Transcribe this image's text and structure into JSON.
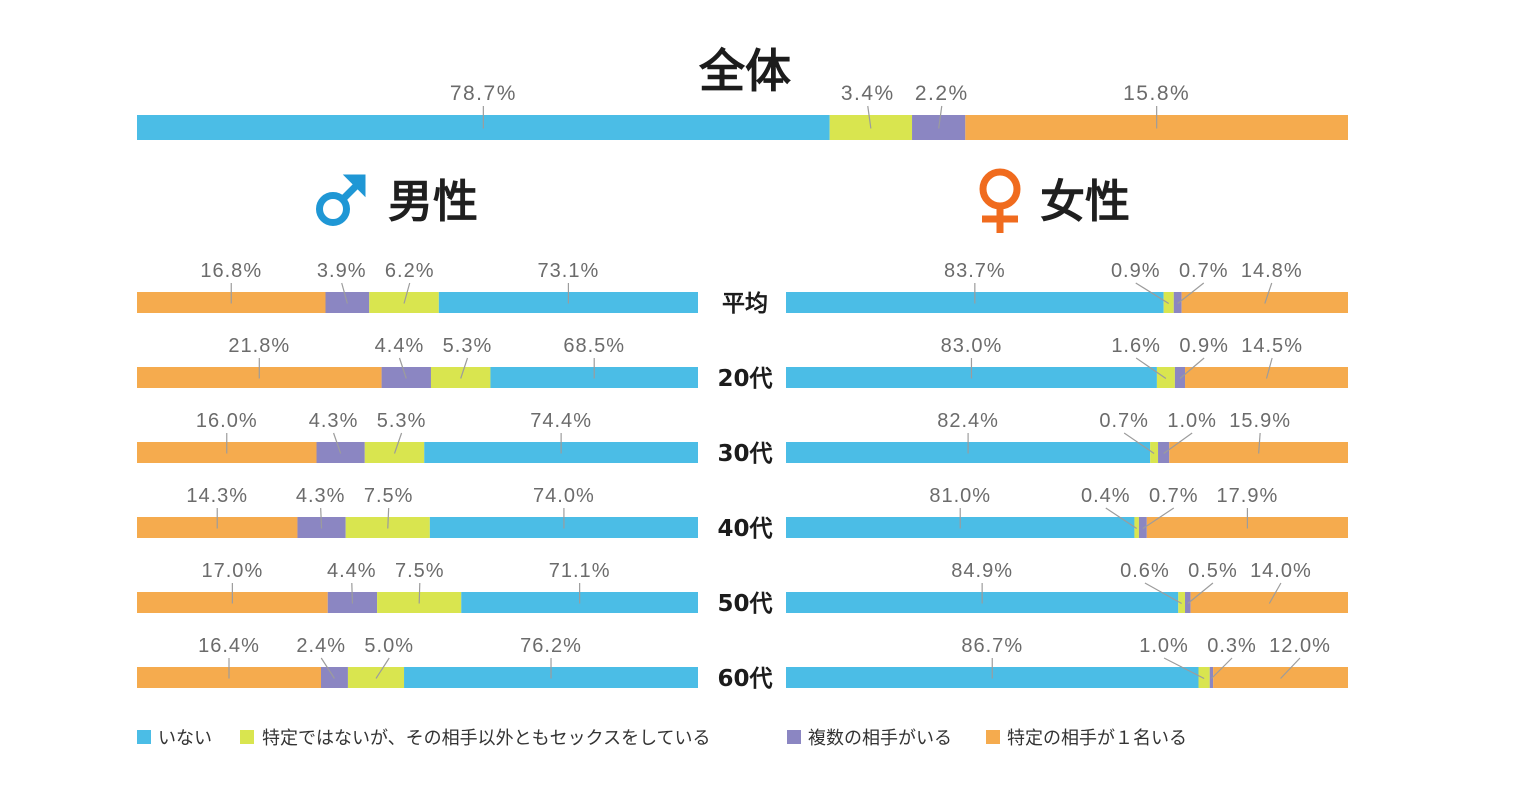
{
  "chart_data": {
    "type": "bar",
    "stacked": true,
    "horizontal": true,
    "legend_position": "bottom",
    "value_suffix": "%",
    "series": [
      {
        "name": "いない",
        "color": "#4bbde6"
      },
      {
        "name": "特定ではないが、その相手以外ともセックスをしている",
        "color": "#d9e54f"
      },
      {
        "name": "複数の相手がいる",
        "color": "#8b86c2"
      },
      {
        "name": "特定の相手が１名いる",
        "color": "#f5ab4e"
      }
    ],
    "categories": [
      "平均",
      "20代",
      "30代",
      "40代",
      "50代",
      "60代"
    ],
    "overall": {
      "title": "全体",
      "values": [
        78.7,
        3.4,
        2.2,
        15.8
      ]
    },
    "male": {
      "title": "男性",
      "icon": "male-symbol-icon",
      "icon_color": "#1f97d5",
      "values_by_category": [
        [
          73.1,
          6.2,
          3.9,
          16.8
        ],
        [
          68.5,
          5.3,
          4.4,
          21.8
        ],
        [
          74.4,
          5.3,
          4.3,
          16.0
        ],
        [
          74.0,
          7.5,
          4.3,
          14.3
        ],
        [
          71.1,
          7.5,
          4.4,
          17.0
        ],
        [
          76.2,
          5.0,
          2.4,
          16.4
        ]
      ]
    },
    "female": {
      "title": "女性",
      "icon": "female-symbol-icon",
      "icon_color": "#f06b1e",
      "values_by_category": [
        [
          83.7,
          0.9,
          0.7,
          14.8
        ],
        [
          83.0,
          1.6,
          0.9,
          14.5
        ],
        [
          82.4,
          0.7,
          1.0,
          15.9
        ],
        [
          81.0,
          0.4,
          0.7,
          17.9
        ],
        [
          84.9,
          0.6,
          0.5,
          14.0
        ],
        [
          86.7,
          1.0,
          0.3,
          12.0
        ]
      ]
    }
  }
}
